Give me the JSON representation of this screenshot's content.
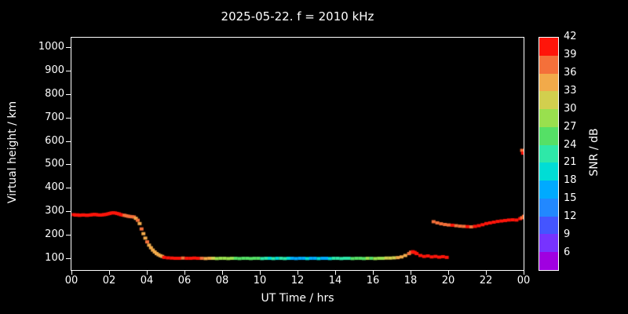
{
  "chart_data": {
    "type": "scatter",
    "title": "2025-05-22. f = 2010 kHz",
    "xlabel": "UT Time / hrs",
    "ylabel": "Virtual height / km",
    "colorbar_label": "SNR / dB",
    "background": "#000000",
    "frame_color": "#ffffff",
    "xlim": [
      0,
      24
    ],
    "ylim": [
      50,
      1040
    ],
    "x_ticks": {
      "values": [
        0,
        2,
        4,
        6,
        8,
        10,
        12,
        14,
        16,
        18,
        20,
        22,
        24
      ],
      "labels": [
        "00",
        "02",
        "04",
        "06",
        "08",
        "10",
        "12",
        "14",
        "16",
        "18",
        "20",
        "22",
        "00"
      ]
    },
    "y_ticks": {
      "values": [
        100,
        200,
        300,
        400,
        500,
        600,
        700,
        800,
        900,
        1000
      ],
      "labels": [
        "100",
        "200",
        "300",
        "400",
        "500",
        "600",
        "700",
        "800",
        "900",
        "1000"
      ]
    },
    "colorbar": {
      "min": 3,
      "max": 42,
      "step": 3,
      "tick_values": [
        6,
        9,
        12,
        15,
        18,
        21,
        24,
        27,
        30,
        33,
        36,
        39,
        42
      ],
      "tick_labels": [
        "6",
        "9",
        "12",
        "15",
        "18",
        "21",
        "24",
        "27",
        "30",
        "33",
        "36",
        "39",
        "42"
      ],
      "band_colors": [
        "#a000e0",
        "#7733ff",
        "#4455ff",
        "#2288ff",
        "#00aaff",
        "#00ddd5",
        "#2ee8a8",
        "#55e066",
        "#99e04e",
        "#d2cf4e",
        "#f2aa4a",
        "#f4703a",
        "#ff150a"
      ]
    },
    "points_format": "[ut_hour, virtual_height_km, snr_db]",
    "points": [
      [
        0.1,
        286,
        40
      ],
      [
        0.2,
        284,
        39
      ],
      [
        0.3,
        285,
        40
      ],
      [
        0.4,
        283,
        40
      ],
      [
        0.5,
        284,
        39
      ],
      [
        0.6,
        285,
        40
      ],
      [
        0.7,
        284,
        40
      ],
      [
        0.8,
        283,
        39
      ],
      [
        0.9,
        284,
        40
      ],
      [
        1.0,
        285,
        40
      ],
      [
        1.1,
        286,
        40
      ],
      [
        1.2,
        287,
        39
      ],
      [
        1.3,
        286,
        40
      ],
      [
        1.4,
        285,
        40
      ],
      [
        1.5,
        284,
        40
      ],
      [
        1.6,
        285,
        39
      ],
      [
        1.7,
        286,
        40
      ],
      [
        1.8,
        287,
        40
      ],
      [
        1.9,
        289,
        40
      ],
      [
        2.0,
        291,
        39
      ],
      [
        2.1,
        293,
        40
      ],
      [
        2.2,
        294,
        40
      ],
      [
        2.3,
        293,
        40
      ],
      [
        2.4,
        291,
        39
      ],
      [
        2.5,
        289,
        40
      ],
      [
        2.6,
        286,
        40
      ],
      [
        2.7,
        284,
        39
      ],
      [
        2.8,
        283,
        37
      ],
      [
        2.9,
        281,
        36
      ],
      [
        3.0,
        279,
        37
      ],
      [
        3.1,
        278,
        36
      ],
      [
        3.2,
        277,
        37
      ],
      [
        3.3,
        276,
        36
      ],
      [
        3.4,
        270,
        35
      ],
      [
        3.5,
        262,
        36
      ],
      [
        3.6,
        248,
        35
      ],
      [
        3.7,
        225,
        36
      ],
      [
        3.8,
        205,
        34
      ],
      [
        3.9,
        186,
        35
      ],
      [
        4.0,
        170,
        36
      ],
      [
        4.1,
        156,
        35
      ],
      [
        4.2,
        145,
        34
      ],
      [
        4.3,
        135,
        33
      ],
      [
        4.4,
        127,
        34
      ],
      [
        4.5,
        120,
        33
      ],
      [
        4.6,
        115,
        34
      ],
      [
        4.7,
        111,
        33
      ],
      [
        4.8,
        108,
        35
      ],
      [
        4.9,
        104,
        40
      ],
      [
        5.1,
        102,
        39
      ],
      [
        5.3,
        101,
        41
      ],
      [
        5.5,
        100,
        40
      ],
      [
        5.7,
        100,
        39
      ],
      [
        5.9,
        101,
        38
      ],
      [
        6.1,
        100,
        40
      ],
      [
        6.3,
        100,
        39
      ],
      [
        6.5,
        101,
        41
      ],
      [
        6.7,
        100,
        40
      ],
      [
        6.9,
        100,
        36
      ],
      [
        7.1,
        99,
        34
      ],
      [
        7.3,
        100,
        35
      ],
      [
        7.5,
        100,
        30
      ],
      [
        7.7,
        99,
        29
      ],
      [
        7.9,
        100,
        28
      ],
      [
        8.1,
        100,
        27
      ],
      [
        8.3,
        99,
        28
      ],
      [
        8.5,
        100,
        29
      ],
      [
        8.7,
        100,
        26
      ],
      [
        8.9,
        99,
        25
      ],
      [
        9.1,
        100,
        24
      ],
      [
        9.3,
        100,
        25
      ],
      [
        9.5,
        99,
        24
      ],
      [
        9.7,
        100,
        26
      ],
      [
        9.9,
        100,
        25
      ],
      [
        10.1,
        99,
        22
      ],
      [
        10.3,
        100,
        21
      ],
      [
        10.5,
        100,
        20
      ],
      [
        10.7,
        99,
        21
      ],
      [
        10.9,
        100,
        20
      ],
      [
        11.1,
        100,
        22
      ],
      [
        11.3,
        99,
        21
      ],
      [
        11.5,
        100,
        18
      ],
      [
        11.7,
        100,
        17
      ],
      [
        11.9,
        99,
        16
      ],
      [
        12.1,
        100,
        17
      ],
      [
        12.3,
        100,
        16
      ],
      [
        12.5,
        99,
        18
      ],
      [
        12.7,
        100,
        17
      ],
      [
        12.9,
        100,
        16
      ],
      [
        13.1,
        99,
        18
      ],
      [
        13.3,
        100,
        17
      ],
      [
        13.5,
        100,
        16
      ],
      [
        13.7,
        99,
        20
      ],
      [
        13.9,
        100,
        21
      ],
      [
        14.1,
        100,
        22
      ],
      [
        14.3,
        99,
        21
      ],
      [
        14.5,
        100,
        22
      ],
      [
        14.7,
        100,
        23
      ],
      [
        14.9,
        99,
        24
      ],
      [
        15.1,
        100,
        25
      ],
      [
        15.3,
        100,
        26
      ],
      [
        15.5,
        99,
        25
      ],
      [
        15.7,
        100,
        27
      ],
      [
        15.9,
        100,
        26
      ],
      [
        16.1,
        99,
        28
      ],
      [
        16.3,
        100,
        27
      ],
      [
        16.5,
        100,
        29
      ],
      [
        16.7,
        101,
        30
      ],
      [
        16.9,
        101,
        31
      ],
      [
        17.1,
        102,
        32
      ],
      [
        17.3,
        103,
        33
      ],
      [
        17.5,
        106,
        34
      ],
      [
        17.7,
        112,
        35
      ],
      [
        17.9,
        120,
        36
      ],
      [
        18.0,
        126,
        38
      ],
      [
        18.1,
        128,
        40
      ],
      [
        18.2,
        125,
        39
      ],
      [
        18.3,
        120,
        40
      ],
      [
        18.5,
        112,
        40
      ],
      [
        18.7,
        108,
        41
      ],
      [
        18.9,
        110,
        40
      ],
      [
        19.1,
        106,
        39
      ],
      [
        19.3,
        108,
        40
      ],
      [
        19.5,
        105,
        40
      ],
      [
        19.7,
        107,
        39
      ],
      [
        19.9,
        104,
        40
      ],
      [
        19.2,
        256,
        37
      ],
      [
        19.4,
        251,
        38
      ],
      [
        19.6,
        247,
        36
      ],
      [
        19.8,
        244,
        37
      ],
      [
        20.0,
        242,
        38
      ],
      [
        20.2,
        241,
        39
      ],
      [
        20.4,
        239,
        38
      ],
      [
        20.6,
        237,
        37
      ],
      [
        20.8,
        236,
        38
      ],
      [
        21.0,
        235,
        39
      ],
      [
        21.2,
        234,
        38
      ],
      [
        21.4,
        236,
        40
      ],
      [
        21.6,
        239,
        39
      ],
      [
        21.8,
        243,
        40
      ],
      [
        22.0,
        248,
        40
      ],
      [
        22.2,
        251,
        39
      ],
      [
        22.4,
        254,
        40
      ],
      [
        22.6,
        257,
        41
      ],
      [
        22.8,
        259,
        40
      ],
      [
        23.0,
        261,
        40
      ],
      [
        23.2,
        263,
        41
      ],
      [
        23.4,
        264,
        40
      ],
      [
        23.6,
        263,
        39
      ],
      [
        23.8,
        269,
        40
      ],
      [
        23.9,
        273,
        38
      ],
      [
        24.0,
        279,
        37
      ],
      [
        23.9,
        560,
        37
      ],
      [
        23.95,
        548,
        39
      ]
    ]
  }
}
